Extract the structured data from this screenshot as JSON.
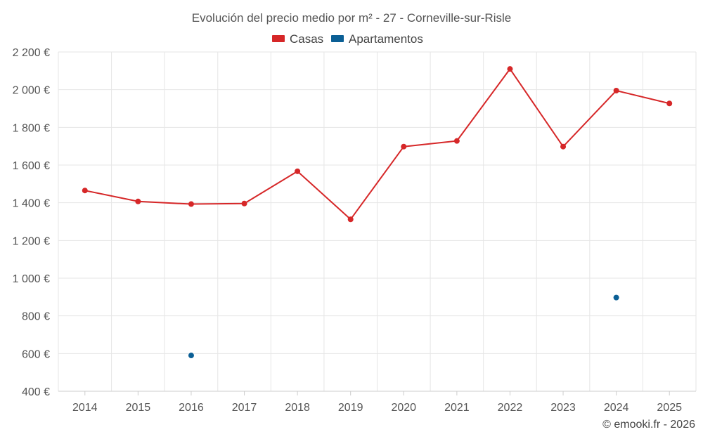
{
  "chart_data": {
    "type": "line",
    "title": "Evolución del precio medio por m² - 27 - Corneville-sur-Risle",
    "categories": [
      "2014",
      "2015",
      "2016",
      "2017",
      "2018",
      "2019",
      "2020",
      "2021",
      "2022",
      "2023",
      "2024",
      "2025"
    ],
    "ylim": [
      400,
      2200
    ],
    "yticks": [
      400,
      600,
      800,
      1000,
      1200,
      1400,
      1600,
      1800,
      2000,
      2200
    ],
    "ytick_labels": [
      "400 €",
      "600 €",
      "800 €",
      "1 000 €",
      "1 200 €",
      "1 400 €",
      "1 600 €",
      "1 800 €",
      "2 000 €",
      "2 200 €"
    ],
    "grid": true,
    "legend_position": "top-center",
    "series": [
      {
        "name": "Casas",
        "color": "#d62728",
        "line": true,
        "values": [
          1465,
          1407,
          1393,
          1396,
          1567,
          1312,
          1698,
          1728,
          2110,
          1698,
          1995,
          1927
        ]
      },
      {
        "name": "Apartamentos",
        "color": "#0b5f95",
        "line": false,
        "values": [
          null,
          null,
          590,
          null,
          null,
          null,
          null,
          null,
          null,
          null,
          897,
          null
        ]
      }
    ]
  },
  "credit": "© emooki.fr - 2026"
}
